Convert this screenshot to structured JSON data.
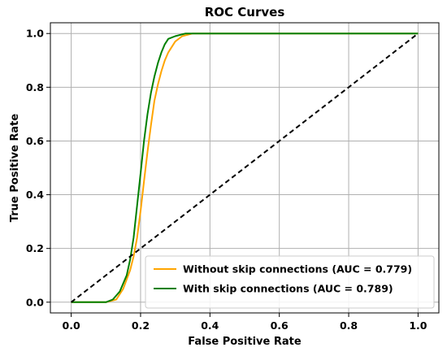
{
  "chart_data": {
    "type": "line",
    "title": "ROC Curves",
    "xlabel": "False Positive Rate",
    "ylabel": "True Positive Rate",
    "xlim": [
      -0.06,
      1.06
    ],
    "ylim": [
      -0.04,
      1.04
    ],
    "xticks": [
      "0.0",
      "0.2",
      "0.4",
      "0.6",
      "0.8",
      "1.0"
    ],
    "yticks": [
      "0.0",
      "0.2",
      "0.4",
      "0.6",
      "0.8",
      "1.0"
    ],
    "grid": true,
    "legend_position": "lower right",
    "series": [
      {
        "name": "Without skip connections (AUC = 0.779)",
        "color": "#FFA500",
        "x": [
          0.0,
          0.1,
          0.13,
          0.15,
          0.17,
          0.18,
          0.19,
          0.2,
          0.21,
          0.22,
          0.23,
          0.24,
          0.25,
          0.26,
          0.27,
          0.28,
          0.3,
          0.32,
          0.35,
          0.4,
          1.0
        ],
        "y": [
          0.0,
          0.0,
          0.01,
          0.05,
          0.12,
          0.17,
          0.24,
          0.34,
          0.45,
          0.56,
          0.66,
          0.75,
          0.81,
          0.86,
          0.9,
          0.93,
          0.97,
          0.99,
          1.0,
          1.0,
          1.0
        ]
      },
      {
        "name": "With skip connections (AUC = 0.789)",
        "color": "#008000",
        "x": [
          0.0,
          0.1,
          0.12,
          0.14,
          0.16,
          0.17,
          0.18,
          0.19,
          0.2,
          0.21,
          0.22,
          0.23,
          0.24,
          0.25,
          0.26,
          0.27,
          0.28,
          0.3,
          0.33,
          0.4,
          1.0
        ],
        "y": [
          0.0,
          0.0,
          0.01,
          0.04,
          0.1,
          0.16,
          0.24,
          0.36,
          0.48,
          0.6,
          0.7,
          0.78,
          0.84,
          0.89,
          0.93,
          0.96,
          0.98,
          0.99,
          1.0,
          1.0,
          1.0
        ]
      },
      {
        "name": "",
        "color": "#000000",
        "dashed": true,
        "x": [
          0.0,
          1.0
        ],
        "y": [
          0.0,
          1.0
        ]
      }
    ]
  }
}
